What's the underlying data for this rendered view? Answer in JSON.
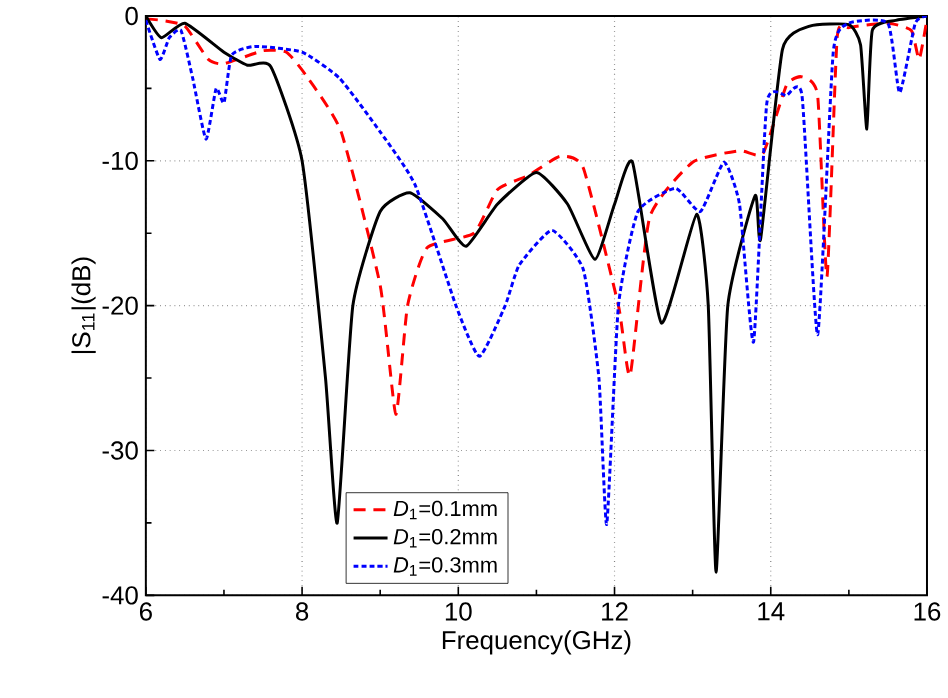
{
  "chart_data": {
    "type": "line",
    "xlabel": "Frequency(GHz)",
    "ylabel": "|S$_{11}$|(dB)",
    "xlim": [
      6,
      16
    ],
    "ylim": [
      -40,
      0
    ],
    "xticks": [
      6,
      8,
      10,
      12,
      14,
      16
    ],
    "yticks": [
      -40,
      -30,
      -20,
      -10,
      0
    ],
    "grid": true,
    "legend": "bottom",
    "marker": "none",
    "series": [
      {
        "name": "*D*$_{1}$=0.1mm",
        "color": "#ff0000",
        "line_style": "dashed",
        "x": [
          6.0,
          6.2,
          6.5,
          6.8,
          7.0,
          7.5,
          7.8,
          8.05,
          8.5,
          9.0,
          9.2,
          9.35,
          9.6,
          10.2,
          10.5,
          10.9,
          11.3,
          11.6,
          12.05,
          12.2,
          12.45,
          13.0,
          13.6,
          13.9,
          14.2,
          14.4,
          14.6,
          14.72,
          14.85,
          15.0,
          15.5,
          15.8,
          15.9,
          16.0
        ],
        "values": [
          -0.2,
          -0.3,
          -0.7,
          -3.0,
          -3.3,
          -2.4,
          -2.5,
          -4.1,
          -8.0,
          -18.6,
          -27.5,
          -20.0,
          -16.0,
          -15.0,
          -12.0,
          -11.0,
          -9.7,
          -10.5,
          -20.0,
          -24.8,
          -13.9,
          -10.1,
          -9.3,
          -9.5,
          -4.8,
          -4.2,
          -5.5,
          -18.0,
          -1.5,
          -0.8,
          -0.5,
          -1.0,
          -3.0,
          -0.2
        ]
      },
      {
        "name": "*D*$_{1}$=0.2mm",
        "color": "#000000",
        "line_style": "solid",
        "x": [
          6.0,
          6.2,
          6.5,
          7.0,
          7.3,
          7.6,
          8.0,
          8.3,
          8.45,
          8.65,
          9.0,
          9.38,
          9.8,
          10.1,
          10.5,
          11.0,
          11.4,
          11.75,
          12.0,
          12.23,
          12.6,
          13.05,
          13.2,
          13.3,
          13.45,
          13.8,
          13.87,
          14.15,
          14.5,
          15.0,
          15.15,
          15.23,
          15.3,
          15.6,
          16.0
        ],
        "values": [
          0.0,
          -1.5,
          -0.5,
          -2.5,
          -3.4,
          -3.5,
          -10.0,
          -25.0,
          -35.0,
          -20.0,
          -13.5,
          -12.2,
          -14.0,
          -15.9,
          -13.0,
          -10.8,
          -13.0,
          -16.8,
          -13.0,
          -10.1,
          -21.2,
          -13.7,
          -20.0,
          -38.4,
          -20.0,
          -12.4,
          -15.4,
          -2.3,
          -0.7,
          -0.6,
          -2.0,
          -7.8,
          -1.0,
          -0.3,
          0.0
        ]
      },
      {
        "name": "*D*$_{1}$=0.3mm",
        "color": "#0000ff",
        "line_style": "dotted",
        "x": [
          6.0,
          6.18,
          6.3,
          6.45,
          6.6,
          6.77,
          6.9,
          7.0,
          7.1,
          7.4,
          8.0,
          8.48,
          9.0,
          9.45,
          9.97,
          10.27,
          10.6,
          10.78,
          11.2,
          11.6,
          11.8,
          11.9,
          12.05,
          12.3,
          12.78,
          13.1,
          13.4,
          13.6,
          13.78,
          13.95,
          14.2,
          14.4,
          14.6,
          14.8,
          15.0,
          15.5,
          15.65,
          15.85,
          16.0
        ],
        "values": [
          -0.3,
          -3.0,
          -1.5,
          -1.0,
          -4.3,
          -8.5,
          -5.0,
          -6.0,
          -2.7,
          -2.1,
          -2.5,
          -4.3,
          -8.0,
          -11.7,
          -20.0,
          -23.5,
          -20.0,
          -17.2,
          -14.8,
          -17.5,
          -25.0,
          -35.1,
          -20.0,
          -13.5,
          -11.9,
          -13.5,
          -10.1,
          -13.0,
          -22.5,
          -6.0,
          -5.5,
          -5.5,
          -22.0,
          -2.5,
          -0.5,
          -0.5,
          -5.3,
          -0.5,
          0.0
        ]
      }
    ]
  }
}
